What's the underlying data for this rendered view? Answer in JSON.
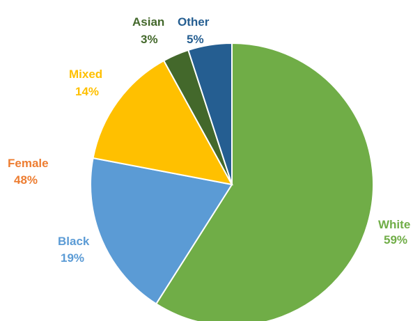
{
  "chart_data": {
    "type": "pie",
    "title": "",
    "slices": [
      {
        "label": "White",
        "value_label": "59%",
        "value": 59,
        "color": "#70AD47"
      },
      {
        "label": "Black",
        "value_label": "19%",
        "value": 19,
        "color": "#5B9BD5"
      },
      {
        "label": "Mixed",
        "value_label": "14%",
        "value": 14,
        "color": "#FFC000"
      },
      {
        "label": "Asian",
        "value_label": "3%",
        "value": 3,
        "color": "#43682B"
      },
      {
        "label": "Other",
        "value_label": "5%",
        "value": 5,
        "color": "#255E91"
      }
    ],
    "annotations": [
      {
        "label": "Female",
        "value_label": "48%",
        "color": "#ED7D31"
      }
    ]
  }
}
